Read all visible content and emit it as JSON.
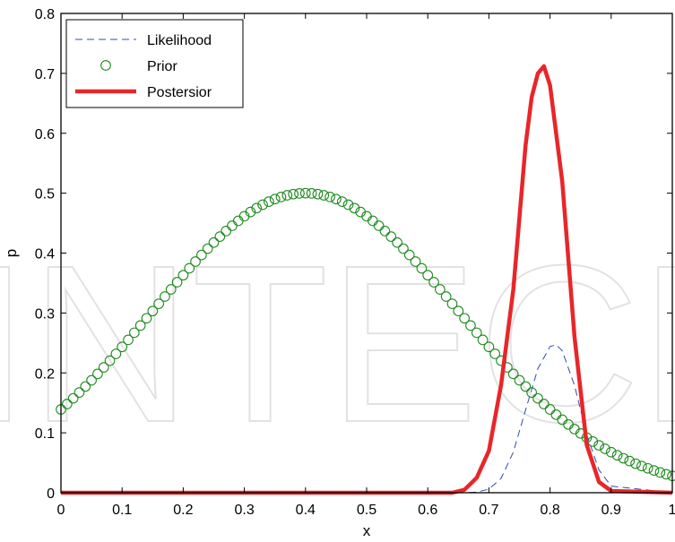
{
  "chart_data": {
    "type": "line",
    "title": "",
    "xlabel": "x",
    "ylabel": "p",
    "xlim": [
      0,
      1
    ],
    "ylim": [
      0,
      0.8
    ],
    "xticks": [
      "0",
      "0.1",
      "0.2",
      "0.3",
      "0.4",
      "0.5",
      "0.6",
      "0.7",
      "0.8",
      "0.9",
      "1"
    ],
    "yticks": [
      "0",
      "0.1",
      "0.2",
      "0.3",
      "0.4",
      "0.5",
      "0.6",
      "0.7",
      "0.8"
    ],
    "grid": false,
    "legend_position": "top-left",
    "watermark": "INTECH",
    "series": [
      {
        "name": "Likelihood",
        "style": "dashed",
        "color": "#2e4fa8",
        "x": [
          0.0,
          0.66,
          0.68,
          0.7,
          0.72,
          0.74,
          0.76,
          0.78,
          0.8,
          0.81,
          0.82,
          0.84,
          0.86,
          0.88,
          0.9,
          1.0
        ],
        "y": [
          0.0,
          0.0,
          0.001,
          0.006,
          0.024,
          0.068,
          0.138,
          0.207,
          0.244,
          0.247,
          0.237,
          0.179,
          0.097,
          0.038,
          0.011,
          0.0
        ]
      },
      {
        "name": "Prior",
        "style": "circles",
        "color": "#1e8a1e",
        "mean": 0.4,
        "sd": 0.25,
        "peak": 0.5,
        "x_start": 0,
        "x_end": 1,
        "x_step": 0.01
      },
      {
        "name": "Postersior",
        "style": "solid",
        "color": "#e8262a",
        "x": [
          0.0,
          0.64,
          0.66,
          0.68,
          0.7,
          0.72,
          0.74,
          0.76,
          0.77,
          0.78,
          0.79,
          0.8,
          0.82,
          0.84,
          0.86,
          0.88,
          0.9,
          1.0
        ],
        "y": [
          0.0,
          0.0,
          0.005,
          0.025,
          0.07,
          0.18,
          0.34,
          0.58,
          0.66,
          0.7,
          0.712,
          0.68,
          0.52,
          0.26,
          0.08,
          0.018,
          0.003,
          0.0
        ]
      }
    ]
  }
}
